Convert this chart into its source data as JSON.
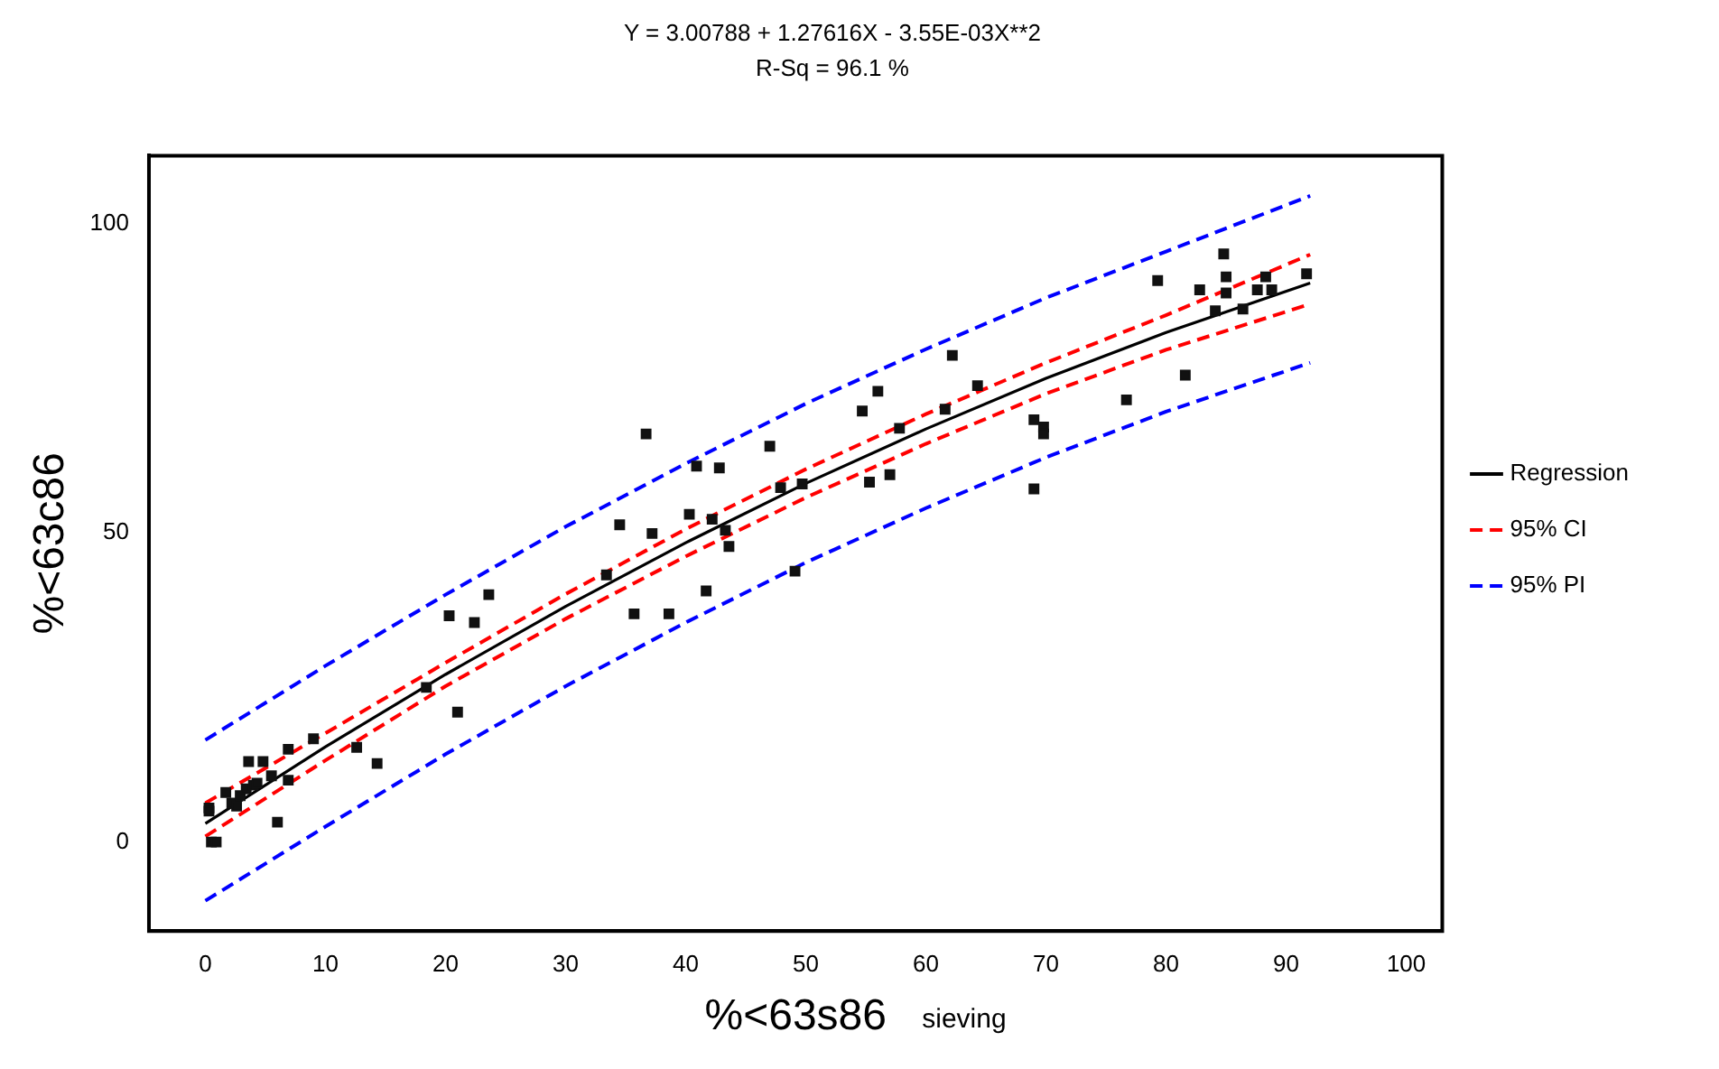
{
  "chart_data": {
    "type": "scatter",
    "title": "Y = 3.00788 + 1.27616X - 3.55E-03X**2",
    "subtitle": "R-Sq = 96.1 %",
    "xlabel": "%<63s86",
    "ylabel": "%<63c86",
    "annotations": [
      "sieving"
    ],
    "xlim": [
      -4.7,
      103
    ],
    "ylim": [
      -14.4,
      111
    ],
    "xticks": [
      0,
      10,
      20,
      30,
      40,
      50,
      60,
      70,
      80,
      90,
      100
    ],
    "yticks": [
      0,
      50,
      100
    ],
    "grid": false,
    "legend": "right",
    "marker": "square",
    "series": [
      {
        "color": "#111111",
        "x": [
          0.3,
          0.5,
          0.9,
          0.3,
          1.7,
          2.2,
          2.6,
          2.9,
          3.4,
          4,
          4.3,
          3.6,
          4.8,
          5.5,
          6,
          6.9,
          9,
          6.9,
          12.6,
          14.3,
          18.4,
          20.3,
          21,
          23.6,
          22.4,
          36.7,
          40.9,
          42.8,
          47,
          54.7,
          56,
          64.3,
          61.6,
          57.8,
          57,
          55.3,
          49.7,
          47.9,
          40.3,
          42.2,
          43.3,
          43.6,
          37.2,
          34.5,
          33.4,
          41.7,
          49.1,
          35.7,
          38.6,
          62.2,
          84.8,
          79.3,
          85,
          82.8,
          85,
          88.3,
          87.6,
          88.8,
          91.7,
          84.1,
          86.4,
          81.6,
          76.7,
          69,
          69.8,
          69.8,
          69
        ],
        "values": [
          5.5,
          0,
          0,
          5,
          8,
          6.3,
          5.8,
          7.5,
          8.6,
          9.2,
          9.5,
          13,
          13,
          10.7,
          3.2,
          15,
          16.7,
          10,
          15.3,
          12.7,
          25,
          36.6,
          21,
          40,
          35.5,
          66,
          60.8,
          60.5,
          64,
          69.7,
          72.9,
          73.8,
          70,
          66.9,
          59.4,
          58.2,
          57.9,
          57.3,
          53,
          52.2,
          50.4,
          47.8,
          49.9,
          51.3,
          43.2,
          40.6,
          43.8,
          36.9,
          36.9,
          78.7,
          95.1,
          90.8,
          91.4,
          89.3,
          88.8,
          91.4,
          89.3,
          89.3,
          91.9,
          85.9,
          86.2,
          75.5,
          71.5,
          68.3,
          67.1,
          66,
          57.1
        ]
      },
      {
        "type": "line",
        "name": "Regression",
        "color": "#000000",
        "line_style": "solid",
        "marker": "none",
        "x": [
          0,
          10,
          20,
          30,
          40,
          50,
          60,
          70,
          80,
          92
        ],
        "values": [
          3,
          15.4,
          27.1,
          38.1,
          48.4,
          58,
          66.8,
          75,
          82.4,
          90.4
        ]
      },
      {
        "type": "line",
        "name": "95% CI",
        "color": "#ff0000",
        "line_style": "dashed",
        "marker": "none",
        "x": [
          0,
          10,
          20,
          30,
          40,
          50,
          60,
          70,
          80,
          92
        ],
        "values": [
          6.3,
          17.6,
          29,
          40.1,
          50.6,
          60.3,
          69.2,
          77.5,
          85.2,
          95
        ]
      },
      {
        "type": "line",
        "color": "#ff0000",
        "line_style": "dashed",
        "marker": "none",
        "x": [
          0,
          10,
          20,
          30,
          40,
          50,
          60,
          70,
          80,
          92
        ],
        "values": [
          0.9,
          13.2,
          25.2,
          36.1,
          46.2,
          55.7,
          64.4,
          72.5,
          79.6,
          87
        ]
      },
      {
        "type": "line",
        "name": "95% PI",
        "color": "#0000ff",
        "line_style": "dashed",
        "marker": "none",
        "x": [
          0,
          10,
          20,
          30,
          40,
          50,
          60,
          70,
          80,
          92
        ],
        "values": [
          16.5,
          28.5,
          40,
          51,
          61.2,
          70.9,
          79.7,
          88,
          95.5,
          104.5
        ]
      },
      {
        "type": "line",
        "color": "#0000ff",
        "line_style": "dashed",
        "marker": "none",
        "x": [
          0,
          10,
          20,
          30,
          40,
          50,
          60,
          70,
          80,
          92
        ],
        "values": [
          -9.5,
          2.5,
          14.2,
          25.2,
          35.5,
          45.2,
          54,
          62.2,
          69.6,
          77.5
        ]
      }
    ]
  }
}
